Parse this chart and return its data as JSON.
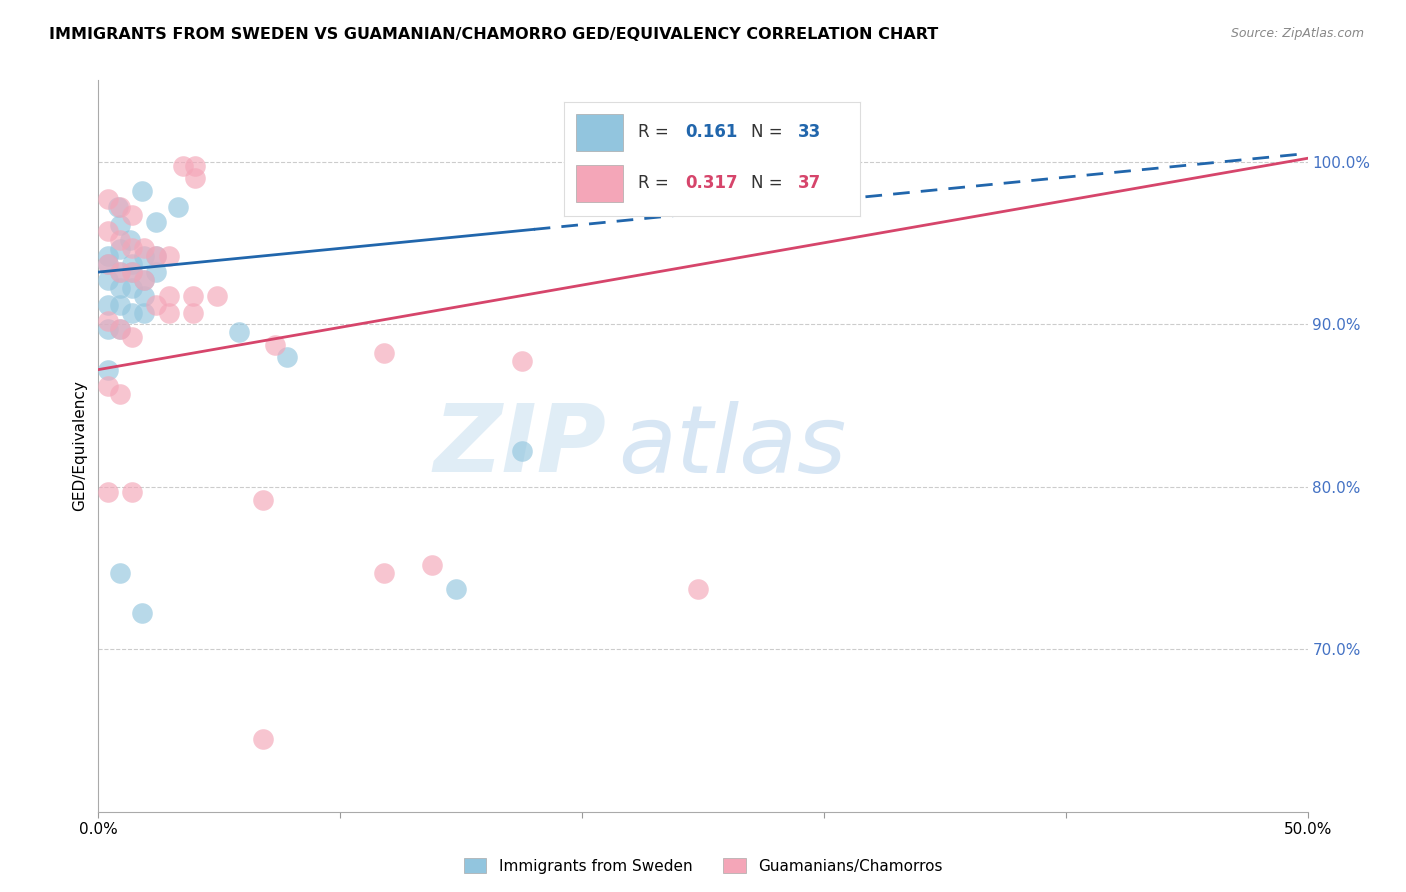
{
  "title": "IMMIGRANTS FROM SWEDEN VS GUAMANIAN/CHAMORRO GED/EQUIVALENCY CORRELATION CHART",
  "source": "Source: ZipAtlas.com",
  "ylabel": "GED/Equivalency",
  "ytick_labels": [
    "100.0%",
    "90.0%",
    "80.0%",
    "70.0%"
  ],
  "ytick_positions": [
    1.0,
    0.9,
    0.8,
    0.7
  ],
  "xlim": [
    0.0,
    0.5
  ],
  "ylim": [
    0.6,
    1.05
  ],
  "legend_r1": "0.161",
  "legend_n1": "33",
  "legend_r2": "0.317",
  "legend_n2": "37",
  "color_blue": "#92c5de",
  "color_pink": "#f4a6b8",
  "color_blue_line": "#2166ac",
  "color_pink_line": "#d6456b",
  "watermark_zip": "ZIP",
  "watermark_atlas": "atlas",
  "blue_line_x": [
    0.0,
    0.5
  ],
  "blue_line_y": [
    0.932,
    1.005
  ],
  "pink_line_x": [
    0.0,
    0.5
  ],
  "pink_line_y": [
    0.872,
    1.002
  ],
  "blue_points": [
    [
      0.008,
      0.972
    ],
    [
      0.018,
      0.982
    ],
    [
      0.024,
      0.963
    ],
    [
      0.033,
      0.972
    ],
    [
      0.009,
      0.961
    ],
    [
      0.013,
      0.952
    ],
    [
      0.009,
      0.946
    ],
    [
      0.014,
      0.937
    ],
    [
      0.019,
      0.942
    ],
    [
      0.024,
      0.942
    ],
    [
      0.004,
      0.942
    ],
    [
      0.009,
      0.932
    ],
    [
      0.004,
      0.937
    ],
    [
      0.014,
      0.932
    ],
    [
      0.019,
      0.927
    ],
    [
      0.024,
      0.932
    ],
    [
      0.004,
      0.927
    ],
    [
      0.009,
      0.922
    ],
    [
      0.014,
      0.922
    ],
    [
      0.019,
      0.917
    ],
    [
      0.004,
      0.912
    ],
    [
      0.009,
      0.912
    ],
    [
      0.014,
      0.907
    ],
    [
      0.019,
      0.907
    ],
    [
      0.004,
      0.897
    ],
    [
      0.009,
      0.897
    ],
    [
      0.058,
      0.895
    ],
    [
      0.078,
      0.88
    ],
    [
      0.004,
      0.872
    ],
    [
      0.175,
      0.822
    ],
    [
      0.009,
      0.747
    ],
    [
      0.148,
      0.737
    ],
    [
      0.018,
      0.722
    ]
  ],
  "pink_points": [
    [
      0.035,
      0.997
    ],
    [
      0.04,
      0.997
    ],
    [
      0.04,
      0.99
    ],
    [
      0.004,
      0.977
    ],
    [
      0.009,
      0.972
    ],
    [
      0.014,
      0.967
    ],
    [
      0.004,
      0.957
    ],
    [
      0.009,
      0.952
    ],
    [
      0.014,
      0.947
    ],
    [
      0.019,
      0.947
    ],
    [
      0.024,
      0.942
    ],
    [
      0.029,
      0.942
    ],
    [
      0.004,
      0.937
    ],
    [
      0.009,
      0.932
    ],
    [
      0.014,
      0.932
    ],
    [
      0.019,
      0.927
    ],
    [
      0.029,
      0.917
    ],
    [
      0.039,
      0.917
    ],
    [
      0.049,
      0.917
    ],
    [
      0.024,
      0.912
    ],
    [
      0.029,
      0.907
    ],
    [
      0.039,
      0.907
    ],
    [
      0.004,
      0.902
    ],
    [
      0.009,
      0.897
    ],
    [
      0.014,
      0.892
    ],
    [
      0.073,
      0.887
    ],
    [
      0.118,
      0.882
    ],
    [
      0.175,
      0.877
    ],
    [
      0.004,
      0.862
    ],
    [
      0.009,
      0.857
    ],
    [
      0.014,
      0.797
    ],
    [
      0.118,
      0.747
    ],
    [
      0.248,
      0.737
    ],
    [
      0.004,
      0.797
    ],
    [
      0.138,
      0.752
    ],
    [
      0.068,
      0.792
    ],
    [
      0.068,
      0.645
    ]
  ]
}
